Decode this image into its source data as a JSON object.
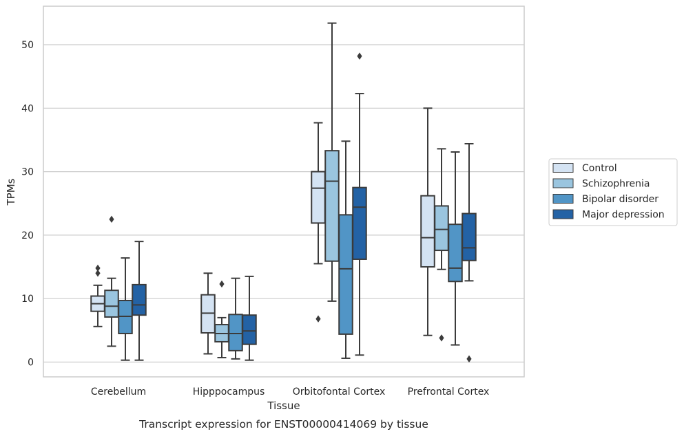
{
  "chart_data": {
    "type": "box",
    "xlabel": "Tissue",
    "ylabel": "TPMs",
    "caption": "Transcript expression for ENST00000414069 by tissue",
    "ylim": [
      -2.3,
      55.8
    ],
    "yticks": [
      0,
      10,
      20,
      30,
      40,
      50
    ],
    "grid": "horizontal",
    "legend_position": "right",
    "categories": [
      "Cerebellum",
      "Hipppocampus",
      "Orbitofontal Cortex",
      "Prefrontal Cortex"
    ],
    "series": [
      {
        "name": "Control",
        "color": "#d4e3f3",
        "boxes": [
          {
            "whisker_low": 5.6,
            "q1": 8.0,
            "median": 9.2,
            "q3": 10.4,
            "whisker_high": 12.1,
            "outliers": [
              14.0,
              14.8
            ]
          },
          {
            "whisker_low": 1.3,
            "q1": 4.6,
            "median": 7.7,
            "q3": 10.6,
            "whisker_high": 14.0,
            "outliers": []
          },
          {
            "whisker_low": 15.5,
            "q1": 21.9,
            "median": 27.4,
            "q3": 30.0,
            "whisker_high": 37.7,
            "outliers": [
              6.8
            ]
          },
          {
            "whisker_low": 4.2,
            "q1": 15.0,
            "median": 19.6,
            "q3": 26.2,
            "whisker_high": 40.0,
            "outliers": []
          }
        ]
      },
      {
        "name": "Schizophrenia",
        "color": "#9ac5df",
        "boxes": [
          {
            "whisker_low": 2.5,
            "q1": 7.1,
            "median": 8.8,
            "q3": 11.3,
            "whisker_high": 13.2,
            "outliers": [
              22.5
            ]
          },
          {
            "whisker_low": 0.7,
            "q1": 3.2,
            "median": 4.5,
            "q3": 5.9,
            "whisker_high": 7.0,
            "outliers": [
              12.3
            ]
          },
          {
            "whisker_low": 9.6,
            "q1": 15.9,
            "median": 28.5,
            "q3": 33.3,
            "whisker_high": 53.4,
            "outliers": []
          },
          {
            "whisker_low": 14.6,
            "q1": 17.6,
            "median": 20.9,
            "q3": 24.6,
            "whisker_high": 33.6,
            "outliers": [
              3.8
            ]
          }
        ]
      },
      {
        "name": "Bipolar disorder",
        "color": "#5195c6",
        "boxes": [
          {
            "whisker_low": 0.3,
            "q1": 4.5,
            "median": 7.2,
            "q3": 9.7,
            "whisker_high": 16.4,
            "outliers": []
          },
          {
            "whisker_low": 0.5,
            "q1": 1.8,
            "median": 4.5,
            "q3": 7.5,
            "whisker_high": 13.2,
            "outliers": []
          },
          {
            "whisker_low": 0.6,
            "q1": 4.4,
            "median": 14.7,
            "q3": 23.2,
            "whisker_high": 34.8,
            "outliers": []
          },
          {
            "whisker_low": 2.7,
            "q1": 12.7,
            "median": 14.8,
            "q3": 21.7,
            "whisker_high": 33.1,
            "outliers": []
          }
        ]
      },
      {
        "name": "Major depression",
        "color": "#2362a5",
        "boxes": [
          {
            "whisker_low": 0.3,
            "q1": 7.4,
            "median": 9.0,
            "q3": 12.2,
            "whisker_high": 19.0,
            "outliers": []
          },
          {
            "whisker_low": 0.3,
            "q1": 2.8,
            "median": 4.9,
            "q3": 7.4,
            "whisker_high": 13.5,
            "outliers": []
          },
          {
            "whisker_low": 1.1,
            "q1": 16.2,
            "median": 24.4,
            "q3": 27.5,
            "whisker_high": 42.3,
            "outliers": [
              48.2
            ]
          },
          {
            "whisker_low": 12.8,
            "q1": 16.0,
            "median": 18.0,
            "q3": 23.4,
            "whisker_high": 34.4,
            "outliers": [
              0.5
            ]
          }
        ]
      }
    ]
  }
}
